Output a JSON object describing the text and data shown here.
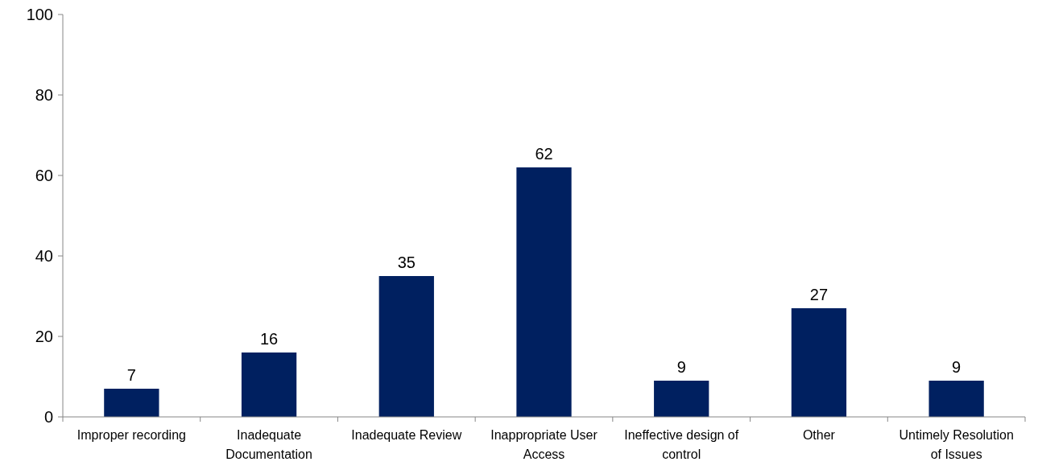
{
  "chart_data": {
    "type": "bar",
    "categories": [
      "Improper recording",
      "Inadequate Documentation",
      "Inadequate Review",
      "Inappropriate User Access",
      "Ineffective design of control",
      "Other",
      "Untimely Resolution of Issues"
    ],
    "values": [
      7,
      16,
      35,
      62,
      9,
      27,
      9
    ],
    "color": "#002060",
    "ylim": [
      0,
      100
    ],
    "yticks": [
      0,
      20,
      40,
      60,
      80,
      100
    ],
    "data_labels": true
  }
}
